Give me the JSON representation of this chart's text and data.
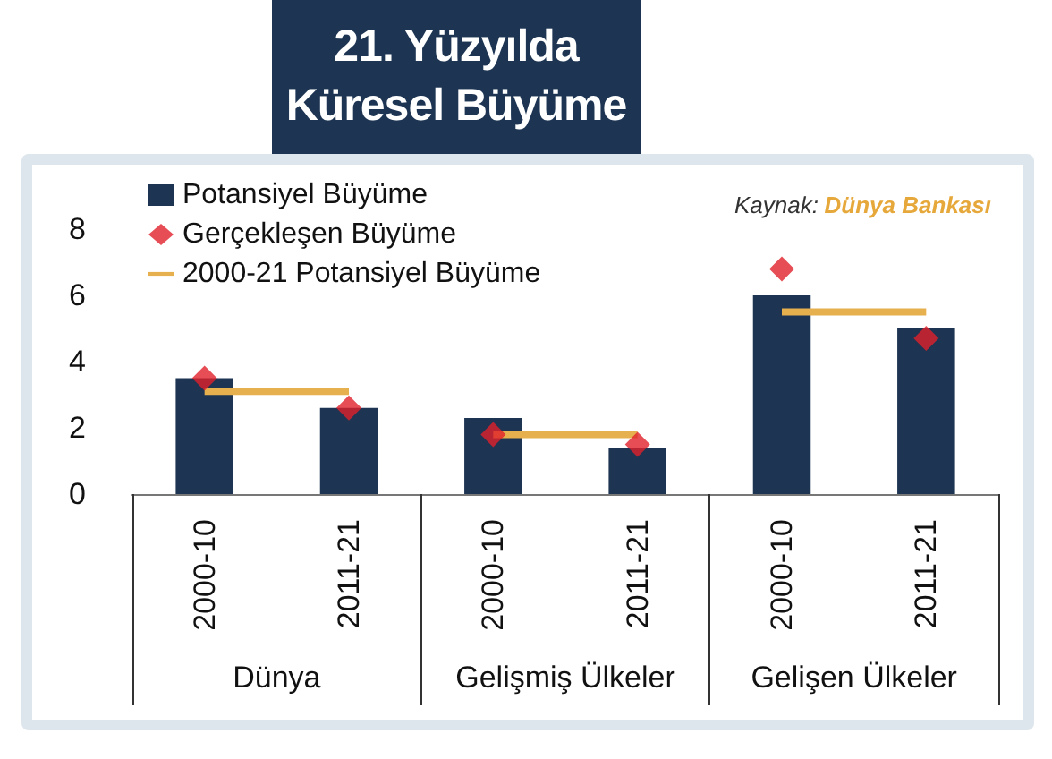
{
  "chart_data": {
    "type": "bar",
    "title": "21. Yüzyılda\nKüresel Büyüme",
    "categories": [
      "2000-10",
      "2011-21",
      "2000-10",
      "2011-21",
      "2000-10",
      "2011-21"
    ],
    "series": [
      {
        "name": "Potansiyel Büyüme",
        "color": "#1d3553",
        "values": [
          3.5,
          2.6,
          2.3,
          1.4,
          6.0,
          5.0
        ]
      },
      {
        "name": "Gerçekleşen Büyüme",
        "type": "scatter",
        "marker": "diamond",
        "color": "#e0202a",
        "values": [
          3.5,
          2.6,
          1.8,
          1.5,
          6.8,
          4.7
        ]
      },
      {
        "name": "2000-21 Potansiyel Büyüme",
        "type": "line",
        "color": "#e6b04e",
        "values": [
          3.1,
          3.1,
          null,
          null,
          null,
          null
        ]
      },
      {
        "type": "line",
        "color": "#e6b04e",
        "values": [
          null,
          null,
          1.8,
          1.8,
          null,
          null
        ]
      },
      {
        "type": "line",
        "color": "#e6b04e",
        "values": [
          null,
          null,
          null,
          null,
          5.5,
          5.5
        ]
      }
    ],
    "ylim": [
      0,
      8
    ],
    "yticks": [
      0,
      2,
      4,
      6,
      8
    ],
    "grid": false,
    "legend": "top left",
    "annotations": [
      "Kaynak: Dünya Bankası",
      "Dünya",
      "Gelişmiş Ülkeler",
      "Gelişen Ülkeler"
    ]
  }
}
